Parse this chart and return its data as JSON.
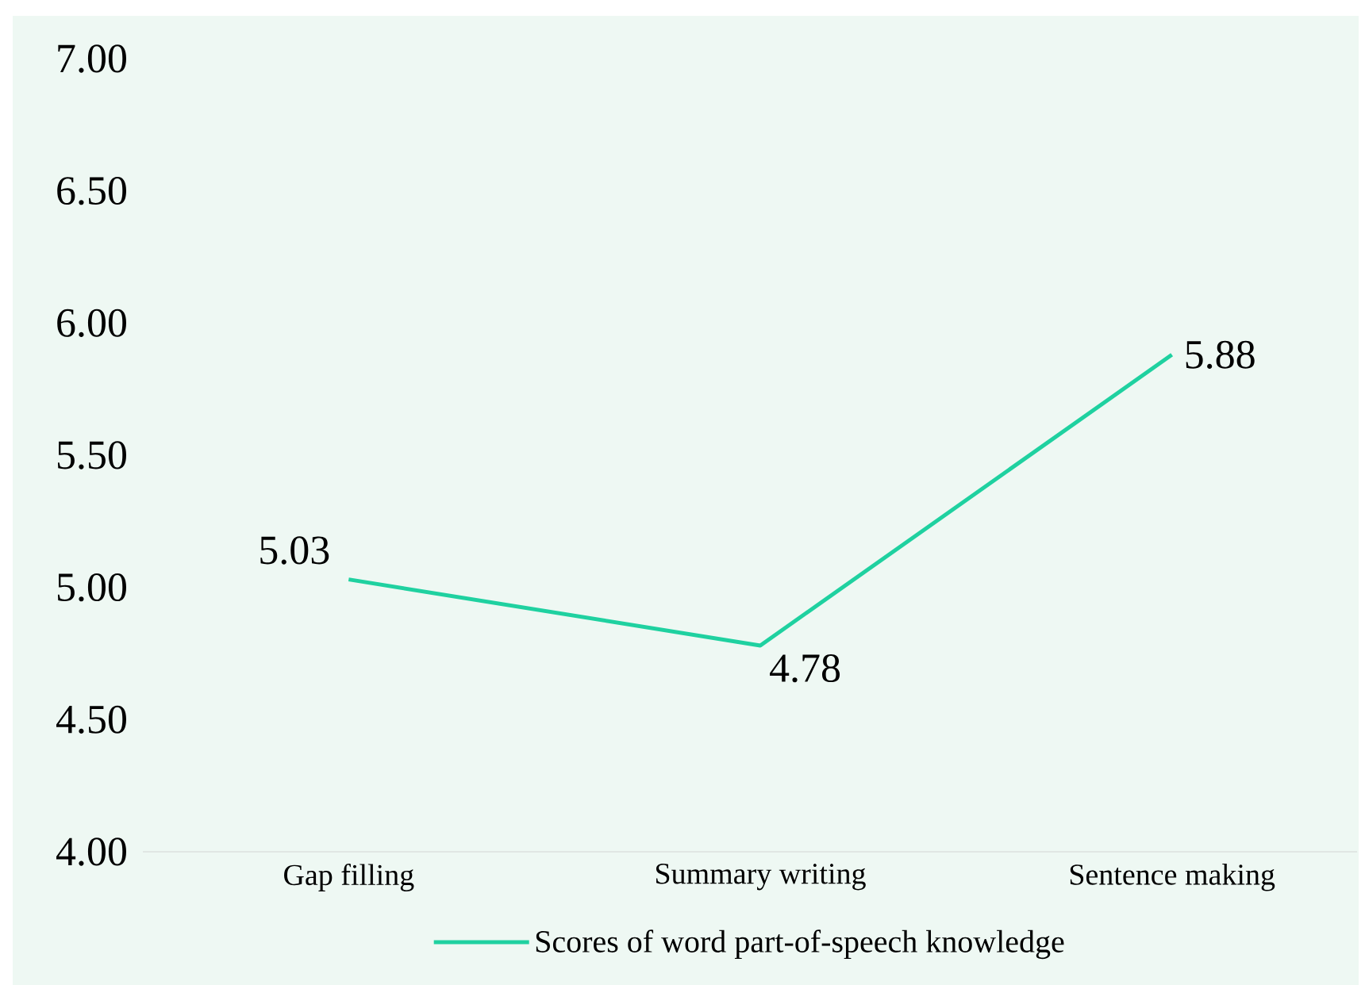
{
  "chart_data": {
    "type": "line",
    "categories": [
      "Gap filling",
      "Summary writing",
      "Sentence making"
    ],
    "series": [
      {
        "name": "Scores of word part-of-speech knowledge",
        "color": "#1fd1a0",
        "values": [
          5.03,
          4.78,
          5.88
        ]
      }
    ],
    "ylim": [
      4,
      7
    ],
    "yticks": [
      {
        "value": 4,
        "label": "4.00"
      },
      {
        "value": 4.5,
        "label": "4.50"
      },
      {
        "value": 5,
        "label": "5.00"
      },
      {
        "value": 5.5,
        "label": "5.50"
      },
      {
        "value": 6,
        "label": "6.00"
      },
      {
        "value": 6.5,
        "label": "6.50"
      },
      {
        "value": 7,
        "label": "7.00"
      }
    ],
    "data_labels": true,
    "legend": "bottom",
    "grid": false,
    "marker": "none",
    "line_style": "solid"
  }
}
